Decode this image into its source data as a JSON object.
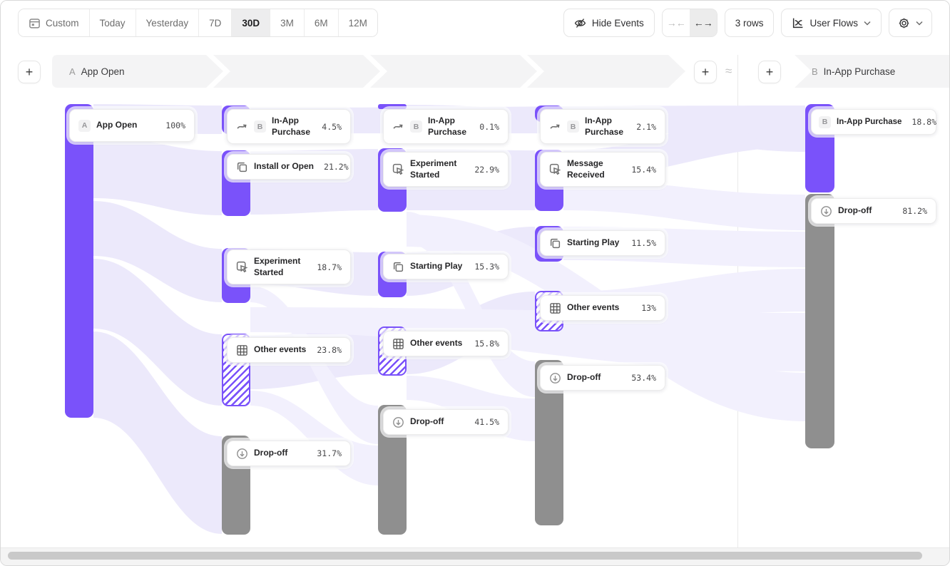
{
  "toolbar": {
    "date_control": {
      "custom": "Custom",
      "today": "Today",
      "yesterday": "Yesterday",
      "d7": "7D",
      "d30": "30D",
      "m3": "3M",
      "m6": "6M",
      "m12": "12M",
      "selected": "30D"
    },
    "hide_events_label": "Hide Events",
    "collapse_glyph": "→←",
    "expand_glyph": "←→",
    "rows_label": "3 rows",
    "view_selector_label": "User Flows"
  },
  "steps_header": {
    "add_step_left": "+",
    "step_a_badge": "A",
    "step_a_label": "App Open",
    "add_step_mid": "+",
    "approx_symbol": "≈",
    "add_step_right": "+",
    "step_b_badge": "B",
    "step_b_label": "In-App Purchase"
  },
  "flow": {
    "columns": [
      {
        "nodes": [
          {
            "badge": "A",
            "label": "App Open",
            "pct": "100%",
            "type": "event"
          }
        ]
      },
      {
        "nodes": [
          {
            "badge": "B",
            "label": "In-App Purchase",
            "pct": "4.5%",
            "icon": "jump-arrow",
            "type": "terminal-event"
          },
          {
            "label": "Install or Open",
            "pct": "21.2%",
            "icon": "copies",
            "type": "event"
          },
          {
            "label": "Experiment Started",
            "pct": "18.7%",
            "icon": "cursor-click",
            "type": "event"
          },
          {
            "label": "Other events",
            "pct": "23.8%",
            "icon": "grid",
            "type": "other-events"
          },
          {
            "label": "Drop-off",
            "pct": "31.7%",
            "icon": "drop-off",
            "type": "drop-off"
          }
        ]
      },
      {
        "nodes": [
          {
            "badge": "B",
            "label": "In-App Purchase",
            "pct": "0.1%",
            "icon": "jump-arrow",
            "type": "terminal-event"
          },
          {
            "label": "Experiment Started",
            "pct": "22.9%",
            "icon": "cursor-click",
            "type": "event"
          },
          {
            "label": "Starting Play",
            "pct": "15.3%",
            "icon": "copies",
            "type": "event"
          },
          {
            "label": "Other events",
            "pct": "15.8%",
            "icon": "grid",
            "type": "other-events"
          },
          {
            "label": "Drop-off",
            "pct": "41.5%",
            "icon": "drop-off",
            "type": "drop-off"
          }
        ]
      },
      {
        "nodes": [
          {
            "badge": "B",
            "label": "In-App Purchase",
            "pct": "2.1%",
            "icon": "jump-arrow",
            "type": "terminal-event"
          },
          {
            "label": "Message Received",
            "pct": "15.4%",
            "icon": "cursor-click",
            "type": "event"
          },
          {
            "label": "Starting Play",
            "pct": "11.5%",
            "icon": "copies",
            "type": "event"
          },
          {
            "label": "Other events",
            "pct": "13%",
            "icon": "grid",
            "type": "other-events"
          },
          {
            "label": "Drop-off",
            "pct": "53.4%",
            "icon": "drop-off",
            "type": "drop-off"
          }
        ]
      },
      {
        "nodes": [
          {
            "badge": "B",
            "label": "In-App Purchase",
            "pct": "18.8%",
            "type": "terminal-event"
          },
          {
            "label": "Drop-off",
            "pct": "81.2%",
            "icon": "drop-off",
            "type": "drop-off"
          }
        ]
      }
    ]
  },
  "colors": {
    "accent_purple": "#7a52fa",
    "ribbon_lavender": "#ece9fb",
    "ribbon_light": "#f2f0fd",
    "dropoff_gray": "#8f8f8f",
    "selected_bg": "#ededee",
    "band_bg": "#f4f4f5"
  }
}
